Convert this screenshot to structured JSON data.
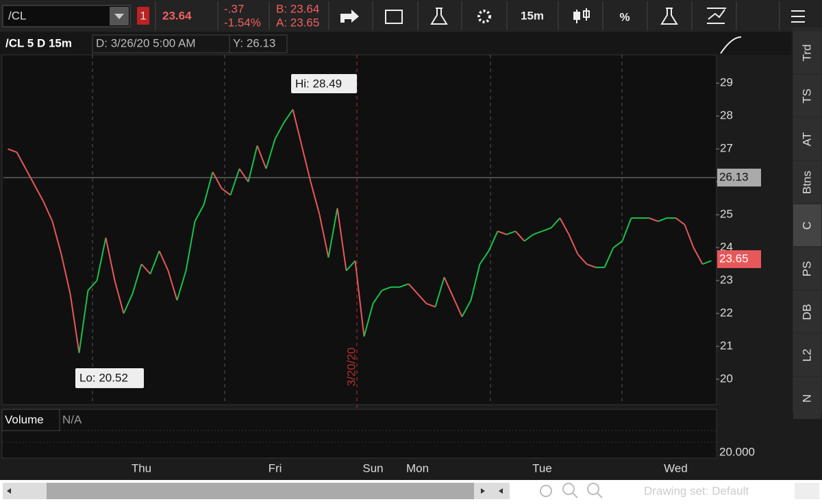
{
  "toolbar": {
    "symbol": "/CL",
    "alert_count": "1",
    "last": "23.64",
    "change": "-.37",
    "change_pct": "-1.54%",
    "bid": "B: 23.64",
    "ask": "A: 23.65",
    "timeframe": "15m",
    "percent": "%"
  },
  "chart_header": {
    "title": "/CL 5 D 15m",
    "date": "D: 3/26/20 5:00 AM",
    "y": "Y: 26.13"
  },
  "chart_data": {
    "type": "line",
    "categories": [
      null,
      null,
      null,
      null,
      null,
      null,
      null,
      null,
      null,
      null,
      null,
      null,
      null,
      null,
      null,
      "Thu",
      null,
      null,
      null,
      null,
      null,
      null,
      null,
      null,
      null,
      null,
      null,
      null,
      null,
      null,
      "Fri",
      null,
      null,
      null,
      null,
      null,
      null,
      null,
      null,
      null,
      null,
      "Sun",
      null,
      null,
      null,
      null,
      "Mon",
      null,
      null,
      null,
      null,
      null,
      null,
      null,
      null,
      null,
      null,
      null,
      null,
      null,
      "Tue",
      null,
      null,
      null,
      null,
      null,
      null,
      null,
      null,
      null,
      null,
      null,
      null,
      null,
      null,
      "Wed",
      null,
      null,
      null,
      null
    ],
    "values": [
      27.0,
      26.9,
      26.4,
      25.9,
      25.4,
      24.8,
      23.8,
      22.6,
      20.8,
      22.7,
      23.0,
      24.3,
      23.0,
      22.0,
      22.6,
      23.5,
      23.2,
      23.9,
      23.3,
      22.4,
      23.3,
      24.8,
      25.3,
      26.3,
      25.8,
      25.6,
      26.4,
      26.0,
      27.1,
      26.4,
      27.3,
      27.8,
      28.2,
      27.1,
      26.0,
      25.0,
      23.7,
      25.2,
      23.3,
      23.6,
      21.3,
      22.3,
      22.7,
      22.8,
      22.8,
      22.9,
      22.6,
      22.3,
      22.2,
      23.1,
      22.5,
      21.9,
      22.4,
      23.5,
      23.9,
      24.5,
      24.4,
      24.5,
      24.2,
      24.4,
      24.5,
      24.6,
      24.9,
      24.4,
      23.8,
      23.5,
      23.4,
      23.4,
      24.0,
      24.2,
      24.9,
      24.9,
      24.9,
      24.8,
      24.9,
      24.9,
      24.7,
      24.0,
      23.5,
      23.6
    ],
    "up_color": "#19c24a",
    "down_color": "#e8585a",
    "ylim": [
      19.23,
      29.86
    ],
    "yticks": [
      20,
      21,
      22,
      23,
      24,
      25,
      26,
      27,
      28,
      29
    ],
    "crosshair": 26.13,
    "last_price": 23.65,
    "hi_label": "Hi: 28.49",
    "lo_label": "Lo: 20.52",
    "session_label": "3/20/20",
    "volume_title": "Volume",
    "volume_value": "N/A",
    "volume_axis": "20.000"
  },
  "sidebar": [
    "Trd",
    "TS",
    "AT",
    "Btns",
    "C",
    "PS",
    "DB",
    "L2",
    "N"
  ],
  "footer": {
    "drawing_set": "Drawing set: Default"
  }
}
